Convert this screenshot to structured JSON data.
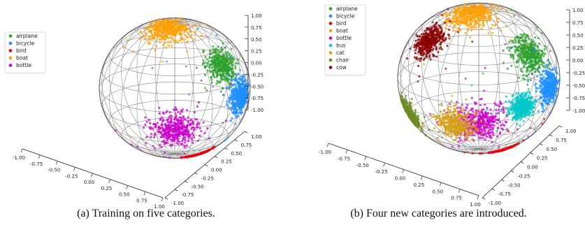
{
  "captions": {
    "a": "(a) Training on five categories.",
    "b": "(b) Four new categories are introduced."
  },
  "chart_data": [
    {
      "type": "scatter",
      "projection": "3d",
      "surface": "unit sphere wireframe",
      "title": "",
      "legend_position": "left",
      "axes": {
        "x": {
          "ticks": [
            "-1.00",
            "-0.75",
            "-0.50",
            "-0.25",
            "0.00",
            "0.25",
            "0.50",
            "0.75",
            "1.00"
          ],
          "range": [
            -1,
            1
          ]
        },
        "y": {
          "ticks": [
            "-1.00",
            "-0.75",
            "-0.50",
            "-0.25",
            "0.00",
            "0.25",
            "0.50",
            "0.75",
            "1.00"
          ],
          "range": [
            -1,
            1
          ]
        },
        "z": {
          "ticks": [
            "-1.00",
            "-0.75",
            "-0.50",
            "-0.25",
            "0.00",
            "0.25",
            "0.50",
            "0.75",
            "1.00"
          ],
          "range": [
            -1,
            1
          ]
        }
      },
      "series": [
        {
          "name": "airplane",
          "color": "#2ca02c",
          "center": [
            0.62,
            -0.55,
            0.55
          ],
          "spread": 0.13
        },
        {
          "name": "bicycle",
          "color": "#1f8fff",
          "center": [
            0.8,
            -0.45,
            0.05
          ],
          "spread": 0.12
        },
        {
          "name": "bird",
          "color": "#e8000b",
          "center": [
            0.3,
            -0.15,
            -0.95
          ],
          "spread": 0.1
        },
        {
          "name": "boat",
          "color": "#ff9f00",
          "center": [
            -0.1,
            -0.2,
            0.98
          ],
          "spread": 0.15
        },
        {
          "name": "bottle",
          "color": "#cc00cc",
          "center": [
            0.0,
            -1.0,
            -0.3
          ],
          "spread": 0.15
        }
      ]
    },
    {
      "type": "scatter",
      "projection": "3d",
      "surface": "unit sphere wireframe",
      "title": "",
      "legend_position": "top-left",
      "axes": {
        "x": {
          "ticks": [
            "-1.00",
            "-0.75",
            "-0.50",
            "-0.25",
            "0.00",
            "0.25",
            "0.50",
            "0.75",
            "1.00"
          ],
          "range": [
            -1,
            1
          ]
        },
        "y": {
          "ticks": [
            "-1.00",
            "-0.75",
            "-0.50",
            "-0.25",
            "0.00",
            "0.25",
            "0.50",
            "0.75",
            "1.00"
          ],
          "range": [
            -1,
            1
          ]
        },
        "z": {
          "ticks": [
            "-1.00",
            "-0.75",
            "-0.50",
            "-0.25",
            "0.00",
            "0.25",
            "0.50",
            "0.75",
            "1.00"
          ],
          "range": [
            -1,
            1
          ]
        }
      },
      "series": [
        {
          "name": "airplane",
          "color": "#2ca02c",
          "center": [
            0.62,
            -0.55,
            0.55
          ],
          "spread": 0.13
        },
        {
          "name": "bicycle",
          "color": "#1f8fff",
          "center": [
            0.8,
            -0.45,
            0.05
          ],
          "spread": 0.12
        },
        {
          "name": "bird",
          "color": "#e8000b",
          "center": [
            0.3,
            -0.15,
            -0.95
          ],
          "spread": 0.1
        },
        {
          "name": "boat",
          "color": "#ff9f00",
          "center": [
            -0.1,
            -0.2,
            0.98
          ],
          "spread": 0.15
        },
        {
          "name": "bottle",
          "color": "#cc00cc",
          "center": [
            0.0,
            -1.0,
            -0.3
          ],
          "spread": 0.15
        },
        {
          "name": "bus",
          "color": "#00c8c8",
          "center": [
            0.55,
            -0.85,
            -0.1
          ],
          "spread": 0.09
        },
        {
          "name": "cat",
          "color": "#d4a017",
          "center": [
            -0.3,
            -0.95,
            -0.35
          ],
          "spread": 0.12
        },
        {
          "name": "chair",
          "color": "#6b8e23",
          "center": [
            -0.8,
            -0.35,
            -0.35
          ],
          "spread": 0.1
        },
        {
          "name": "cow",
          "color": "#8b0000",
          "center": [
            -0.6,
            -0.4,
            0.65
          ],
          "spread": 0.12
        }
      ]
    }
  ]
}
